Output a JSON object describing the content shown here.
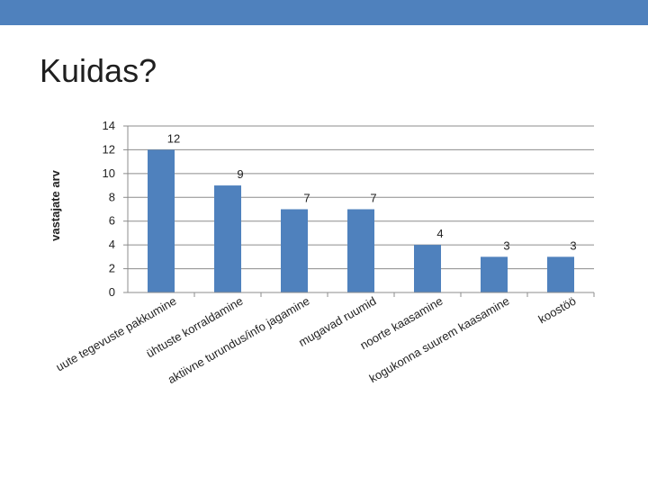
{
  "slide": {
    "title": "Kuidas?",
    "band_color": "#4f81bd"
  },
  "chart_data": {
    "type": "bar",
    "title": "",
    "ylabel": "vastajate arv",
    "xlabel": "",
    "ylim": [
      0,
      14
    ],
    "yticks": [
      0,
      2,
      4,
      6,
      8,
      10,
      12,
      14
    ],
    "grid": true,
    "legend": "none",
    "bar_color": "#4f81bd",
    "categories": [
      "uute tegevuste pakkumine",
      "ühtuste korraldamine",
      "aktiivne turundus/info jagamine",
      "mugavad ruumid",
      "noorte kaasamine",
      "kogukonna suurem kaasamine",
      "koostöö"
    ],
    "values": [
      12,
      9,
      7,
      7,
      4,
      3,
      3
    ]
  }
}
